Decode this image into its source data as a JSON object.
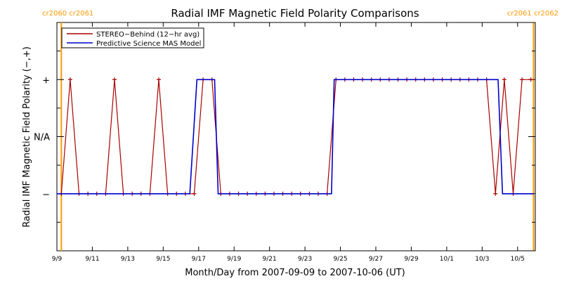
{
  "chart_data": {
    "type": "line",
    "title": "Radial IMF Magnetic Field Polarity Comparisons",
    "xlabel": "Month/Day from 2007-09-09 to 2007-10-06 (UT)",
    "ylabel": "Radial IMF Magnetic Field Polarity (−,+)",
    "x_unit": "days",
    "xlim": [
      0,
      27.0
    ],
    "ylim": [
      -2,
      2
    ],
    "x_ticks": [
      {
        "x": 0,
        "label": "9/9"
      },
      {
        "x": 2,
        "label": "9/11"
      },
      {
        "x": 4,
        "label": "9/13"
      },
      {
        "x": 6,
        "label": "9/15"
      },
      {
        "x": 8,
        "label": "9/17"
      },
      {
        "x": 10,
        "label": "9/19"
      },
      {
        "x": 12,
        "label": "9/21"
      },
      {
        "x": 14,
        "label": "9/23"
      },
      {
        "x": 16,
        "label": "9/25"
      },
      {
        "x": 18,
        "label": "9/27"
      },
      {
        "x": 20,
        "label": "9/29"
      },
      {
        "x": 22,
        "label": "10/1"
      },
      {
        "x": 24,
        "label": "10/3"
      },
      {
        "x": 26,
        "label": "10/5"
      }
    ],
    "y_ticks": [
      {
        "y": 1,
        "label": "+"
      },
      {
        "y": 0,
        "label": "N/A"
      },
      {
        "y": -1,
        "label": "−"
      }
    ],
    "legend": {
      "placement": "top-left",
      "entries": [
        "STEREO−Behind (12−hr avg)",
        "Predictive Science MAS Model"
      ]
    },
    "carrington": {
      "left": {
        "x": 0.25,
        "labels": [
          "cr2060",
          "cr2061"
        ]
      },
      "right": {
        "x": 26.9,
        "labels": [
          "cr2061",
          "cr2062"
        ]
      },
      "color": "#ff9900"
    },
    "series": [
      {
        "name": "STEREO−Behind (12−hr avg)",
        "color": "#aa0000",
        "marker": "plus",
        "x": [
          0.25,
          0.75,
          1.25,
          1.75,
          2.25,
          2.75,
          3.25,
          3.75,
          4.25,
          4.75,
          5.25,
          5.75,
          6.25,
          6.75,
          7.25,
          7.75,
          8.25,
          8.75,
          9.25,
          9.75,
          10.25,
          10.75,
          11.25,
          11.75,
          12.25,
          12.75,
          13.25,
          13.75,
          14.25,
          14.75,
          15.25,
          15.75,
          16.25,
          16.75,
          17.25,
          17.75,
          18.25,
          18.75,
          19.25,
          19.75,
          20.25,
          20.75,
          21.25,
          21.75,
          22.25,
          22.75,
          23.25,
          23.75,
          24.25,
          24.75,
          25.25,
          25.75,
          26.25,
          26.75
        ],
        "y": [
          -1,
          1,
          -1,
          -1,
          -1,
          -1,
          1,
          -1,
          -1,
          -1,
          -1,
          1,
          -1,
          -1,
          -1,
          -1,
          1,
          1,
          -1,
          -1,
          -1,
          -1,
          -1,
          -1,
          -1,
          -1,
          -1,
          -1,
          -1,
          -1,
          -1,
          1,
          1,
          1,
          1,
          1,
          1,
          1,
          1,
          1,
          1,
          1,
          1,
          1,
          1,
          1,
          1,
          1,
          1,
          -1,
          1,
          -1,
          1,
          1
        ]
      },
      {
        "name": "Predictive Science MAS Model",
        "color": "#0000cc",
        "marker": "none",
        "x": [
          0,
          7.5,
          7.9,
          8.9,
          9.1,
          15.5,
          15.65,
          24.9,
          25.15,
          26.9
        ],
        "y": [
          -1,
          -1,
          1,
          1,
          -1,
          -1,
          1,
          1,
          -1,
          -1
        ]
      }
    ]
  }
}
